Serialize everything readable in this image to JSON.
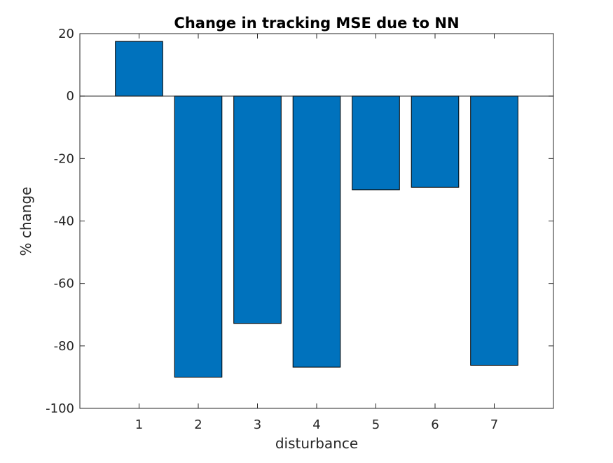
{
  "chart_data": {
    "type": "bar",
    "title": "Change in tracking MSE due to NN",
    "xlabel": "disturbance",
    "ylabel": "% change",
    "categories": [
      "1",
      "2",
      "3",
      "4",
      "5",
      "6",
      "7"
    ],
    "x": [
      1,
      2,
      3,
      4,
      5,
      6,
      7
    ],
    "values": [
      17.5,
      -90.0,
      -72.8,
      -86.8,
      -30.0,
      -29.2,
      -86.2
    ],
    "xlim": [
      0,
      8
    ],
    "ylim": [
      -100,
      20
    ],
    "yticks": [
      20,
      0,
      -20,
      -40,
      -60,
      -80,
      -100
    ],
    "ytick_labels": [
      "20",
      "0",
      "-20",
      "-40",
      "-60",
      "-80",
      "-100"
    ],
    "grid": false,
    "bar_color": "#0072bd",
    "bar_edge_color": "#000000"
  }
}
